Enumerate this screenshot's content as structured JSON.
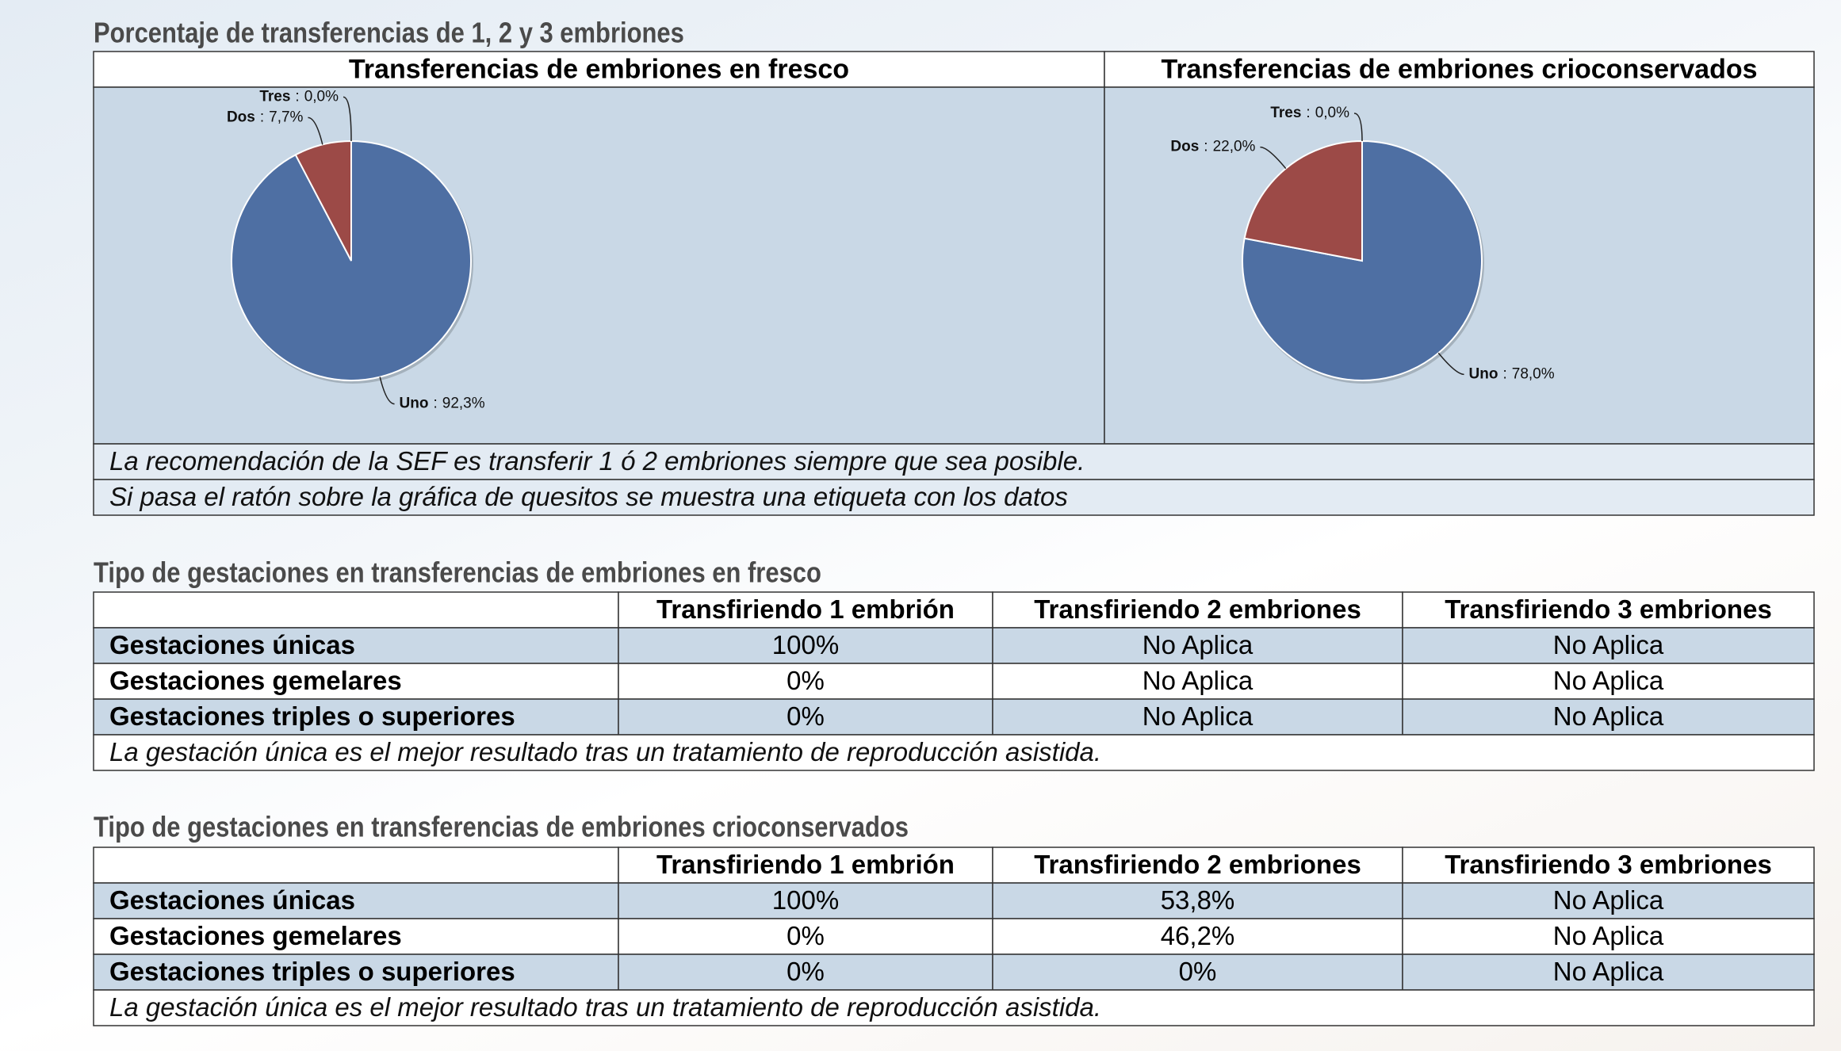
{
  "header": {
    "title": "Porcentaje de transferencias de 1, 2 y 3 embriones"
  },
  "chart_data": [
    {
      "type": "pie",
      "title": "Transferencias de embriones en fresco",
      "categories": [
        "Uno",
        "Dos",
        "Tres"
      ],
      "values": [
        92.3,
        7.7,
        0.0
      ],
      "value_labels": [
        "92,3%",
        "7,7%",
        "0,0%"
      ],
      "colors": [
        "#4e6fa3",
        "#9c4a47",
        "#8aa04f"
      ],
      "label_separator": ":"
    },
    {
      "type": "pie",
      "title": "Transferencias de embriones crioconservados",
      "categories": [
        "Uno",
        "Dos",
        "Tres"
      ],
      "values": [
        78.0,
        22.0,
        0.0
      ],
      "value_labels": [
        "78,0%",
        "22,0%",
        "0,0%"
      ],
      "colors": [
        "#4e6fa3",
        "#9c4a47",
        "#8aa04f"
      ],
      "label_separator": ":"
    }
  ],
  "notes": [
    "La recomendación de la SEF es transferir 1 ó 2 embriones siempre que sea posible.",
    "Si pasa el ratón sobre la gráfica de quesitos se muestra una etiqueta con los datos"
  ],
  "tables": [
    {
      "title": "Tipo de gestaciones en transferencias de embriones en fresco",
      "columns": [
        "Transfiriendo 1 embrión",
        "Transfiriendo 2 embriones",
        "Transfiriendo 3 embriones"
      ],
      "rows": [
        [
          "Gestaciones únicas",
          "100%",
          "No Aplica",
          "No Aplica"
        ],
        [
          "Gestaciones gemelares",
          "0%",
          "No Aplica",
          "No Aplica"
        ],
        [
          "Gestaciones triples o superiores",
          "0%",
          "No Aplica",
          "No Aplica"
        ]
      ],
      "footnote": "La gestación única es el mejor resultado tras un tratamiento de reproducción asistida."
    },
    {
      "title": "Tipo de gestaciones en transferencias de embriones crioconservados",
      "columns": [
        "Transfiriendo 1 embrión",
        "Transfiriendo 2 embriones",
        "Transfiriendo 3 embriones"
      ],
      "rows": [
        [
          "Gestaciones únicas",
          "100%",
          "53,8%",
          "No Aplica"
        ],
        [
          "Gestaciones gemelares",
          "0%",
          "46,2%",
          "No Aplica"
        ],
        [
          "Gestaciones triples o superiores",
          "0%",
          "0%",
          "No Aplica"
        ]
      ],
      "footnote": "La gestación única es el mejor resultado tras un tratamiento de reproducción asistida."
    }
  ]
}
